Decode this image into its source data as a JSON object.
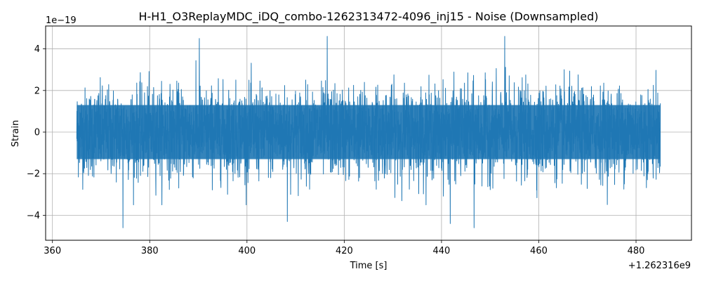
{
  "chart_data": {
    "type": "line",
    "title": "H-H1_O3ReplayMDC_iDQ_combo-1262313472-4096_inj15 - Noise (Downsampled)",
    "xlabel": "Time [s]",
    "ylabel": "Strain",
    "x_offset_label": "+1.262316e9",
    "y_scale_label": "1e−19",
    "xlim": [
      358.6,
      491.4
    ],
    "ylim": [
      -5.2,
      5.1
    ],
    "x_ticks": [
      360,
      380,
      400,
      420,
      440,
      460,
      480
    ],
    "y_ticks": [
      -4,
      -2,
      0,
      2,
      4
    ],
    "x_tick_labels": [
      "360",
      "380",
      "400",
      "420",
      "440",
      "460",
      "480"
    ],
    "y_tick_labels": [
      "−4",
      "−2",
      "0",
      "2",
      "4"
    ],
    "grid": true,
    "series": [
      {
        "color": "#1f77b4",
        "x_range": [
          365,
          485
        ],
        "approx_envelope_upper": 3.5,
        "approx_envelope_lower": -3.5,
        "peaks": [
          {
            "x": 390.2,
            "y": 4.5
          },
          {
            "x": 416.5,
            "y": 4.6
          },
          {
            "x": 453.0,
            "y": 4.6
          },
          {
            "x": 374.5,
            "y": -4.6
          },
          {
            "x": 408.3,
            "y": -4.3
          },
          {
            "x": 441.8,
            "y": -4.4
          },
          {
            "x": 446.7,
            "y": -4.6
          }
        ]
      }
    ]
  }
}
